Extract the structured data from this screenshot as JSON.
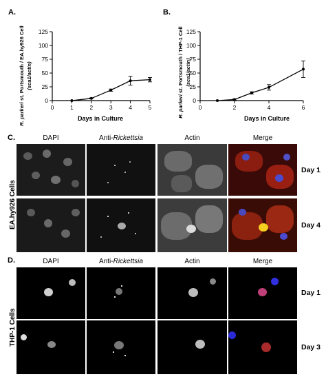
{
  "panels": {
    "a": "A.",
    "b": "B.",
    "c": "C.",
    "d": "D."
  },
  "chart_data": [
    {
      "type": "line",
      "panel": "A.",
      "ylabel_line1_italic": "R. parkeri",
      "ylabel_line1_rest": " st. Portsmouth / EA.hy926 Cell",
      "ylabel_line2": "(sca1/actin)",
      "xlabel": "Days in Culture",
      "xlim": [
        0,
        5
      ],
      "ylim": [
        0,
        125
      ],
      "xticks": [
        "0",
        "1",
        "2",
        "3",
        "4",
        "5"
      ],
      "yticks": [
        "0",
        "25",
        "50",
        "75",
        "100",
        "125"
      ],
      "x": [
        1,
        2,
        3,
        4,
        5
      ],
      "y": [
        0,
        4,
        19,
        36,
        38
      ],
      "err": [
        0,
        1,
        2,
        8,
        4
      ],
      "color": "#000000"
    },
    {
      "type": "line",
      "panel": "B.",
      "ylabel_line1_italic": "R. parkeri",
      "ylabel_line1_rest": " st. Portsmouth / THP-1 Cell",
      "ylabel_line2": "(sca1/actin)",
      "xlabel": "Days in Culture",
      "xlim": [
        0,
        6
      ],
      "ylim": [
        0,
        125
      ],
      "xticks": [
        "0",
        "2",
        "4",
        "6"
      ],
      "yticks": [
        "0",
        "25",
        "50",
        "75",
        "100",
        "125"
      ],
      "x": [
        1,
        2,
        3,
        4,
        6
      ],
      "y": [
        0,
        2,
        14,
        24,
        57
      ],
      "err": [
        0,
        1,
        2,
        5,
        15
      ],
      "color": "#000000"
    }
  ],
  "grid_c": {
    "headers": {
      "dapi": "DAPI",
      "anti_prefix": "Anti-",
      "anti_italic": "Rickettsia",
      "actin": "Actin",
      "merge": "Merge"
    },
    "row_label": "EA.hy926 Cells",
    "days": [
      "Day 1",
      "Day 4"
    ]
  },
  "grid_d": {
    "headers": {
      "dapi": "DAPI",
      "anti_prefix": "Anti-",
      "anti_italic": "Rickettsia",
      "actin": "Actin",
      "merge": "Merge"
    },
    "row_label": "THP-1 Cells",
    "days": [
      "Day 1",
      "Day 3"
    ]
  }
}
